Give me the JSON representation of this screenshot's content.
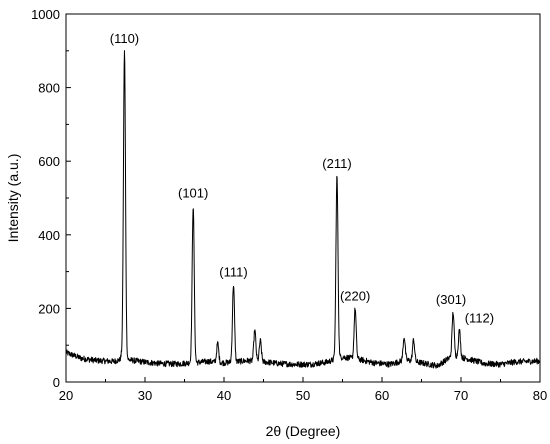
{
  "chart_data": {
    "type": "line",
    "title": "",
    "xlabel": "2θ (Degree)",
    "ylabel": "Intensity (a.u.)",
    "xlim": [
      20,
      80
    ],
    "ylim": [
      0,
      1000
    ],
    "grid": false,
    "x_ticks": [
      20,
      30,
      40,
      50,
      60,
      70,
      80
    ],
    "y_ticks": [
      0,
      200,
      400,
      600,
      800,
      1000
    ],
    "baseline": {
      "x": [
        20,
        22,
        24,
        26,
        26.8,
        27.0,
        28.0,
        30,
        32,
        34,
        35.6,
        36.6,
        38,
        40,
        42,
        43,
        45,
        47,
        49,
        51,
        53,
        55,
        57,
        59,
        61,
        63,
        65,
        67,
        69,
        71,
        73,
        75,
        77,
        80
      ],
      "y": [
        80,
        64,
        58,
        56,
        60,
        70,
        60,
        54,
        50,
        49,
        52,
        53,
        56,
        52,
        56,
        58,
        55,
        50,
        48,
        48,
        54,
        68,
        62,
        52,
        48,
        60,
        52,
        44,
        72,
        62,
        50,
        48,
        55,
        57
      ]
    },
    "peaks": [
      {
        "x": 27.4,
        "height": 900,
        "label": "(110)"
      },
      {
        "x": 36.1,
        "height": 480,
        "label": "(101)"
      },
      {
        "x": 39.2,
        "height": 105,
        "label": ""
      },
      {
        "x": 41.2,
        "height": 265,
        "label": "(111)"
      },
      {
        "x": 43.9,
        "height": 140,
        "label": ""
      },
      {
        "x": 44.6,
        "height": 112,
        "label": ""
      },
      {
        "x": 54.3,
        "height": 560,
        "label": "(211)"
      },
      {
        "x": 56.6,
        "height": 200,
        "label": "(220)"
      },
      {
        "x": 62.8,
        "height": 123,
        "label": ""
      },
      {
        "x": 64.0,
        "height": 115,
        "label": ""
      },
      {
        "x": 69.0,
        "height": 190,
        "label": "(301)"
      },
      {
        "x": 69.8,
        "height": 140,
        "label": "(112)"
      }
    ]
  }
}
